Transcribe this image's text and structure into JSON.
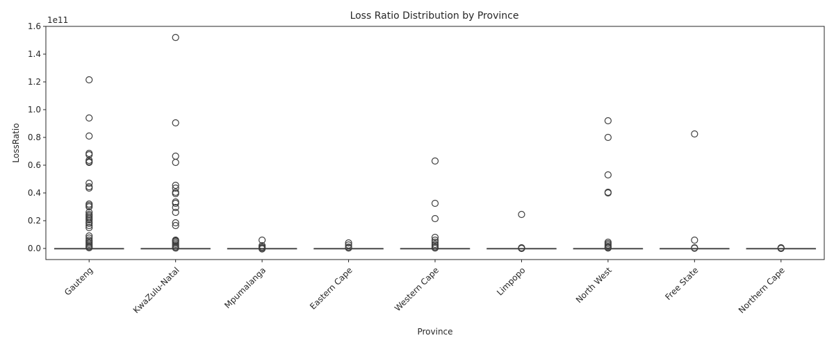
{
  "chart_data": {
    "type": "box",
    "title": "Loss Ratio Distribution by Province",
    "xlabel": "Province",
    "ylabel": "LossRatio",
    "y_offset_label": "1e11",
    "ylim": [
      -0.08,
      1.6
    ],
    "yticks": [
      0.0,
      0.2,
      0.4,
      0.6,
      0.8,
      1.0,
      1.2,
      1.4,
      1.6
    ],
    "ytick_labels": [
      "0.0",
      "0.2",
      "0.4",
      "0.6",
      "0.8",
      "1.0",
      "1.2",
      "1.4",
      "1.6"
    ],
    "grid": false,
    "x_tick_rotation_deg": 45,
    "colors": {
      "stroke": "#3f3f3f",
      "box_fill": "#1f77b4",
      "text": "#262626"
    },
    "categories": [
      "Gauteng",
      "KwaZulu-Natal",
      "Mpumalanga",
      "Eastern Cape",
      "Western Cape",
      "Limpopo",
      "North West",
      "Free State",
      "Northern Cape"
    ],
    "boxes": [
      {
        "category": "Gauteng",
        "q1": 0,
        "median": 0,
        "q3": 0,
        "whisker_low": 0,
        "whisker_high": 0,
        "outliers": [
          1.215,
          0.94,
          0.81,
          0.685,
          0.675,
          0.635,
          0.625,
          0.62,
          0.47,
          0.445,
          0.435,
          0.32,
          0.31,
          0.3,
          0.26,
          0.245,
          0.235,
          0.225,
          0.215,
          0.205,
          0.19,
          0.18,
          0.165,
          0.15,
          0.09,
          0.075,
          0.06,
          0.05,
          0.04,
          0.03,
          0.02,
          0.012,
          0.005
        ]
      },
      {
        "category": "KwaZulu-Natal",
        "q1": 0,
        "median": 0,
        "q3": 0,
        "whisker_low": 0,
        "whisker_high": 0,
        "outliers": [
          1.52,
          0.905,
          0.665,
          0.62,
          0.455,
          0.435,
          0.405,
          0.395,
          0.335,
          0.325,
          0.295,
          0.26,
          0.185,
          0.165,
          0.06,
          0.055,
          0.05,
          0.04,
          0.03,
          0.02,
          0.01,
          0.003
        ]
      },
      {
        "category": "Mpumalanga",
        "q1": 0,
        "median": 0,
        "q3": 0,
        "whisker_low": 0,
        "whisker_high": 0,
        "outliers": [
          0.06,
          0.02,
          0.01,
          0.003,
          -0.003
        ]
      },
      {
        "category": "Eastern Cape",
        "q1": 0,
        "median": 0,
        "q3": 0,
        "whisker_low": 0,
        "whisker_high": 0,
        "outliers": [
          0.04,
          0.025,
          0.01,
          0.003
        ]
      },
      {
        "category": "Western Cape",
        "q1": 0,
        "median": 0,
        "q3": 0,
        "whisker_low": 0,
        "whisker_high": 0,
        "outliers": [
          0.63,
          0.325,
          0.215,
          0.08,
          0.06,
          0.045,
          0.03,
          0.02,
          0.01,
          0.003
        ]
      },
      {
        "category": "Limpopo",
        "q1": 0,
        "median": 0,
        "q3": 0,
        "whisker_low": 0,
        "whisker_high": 0,
        "outliers": [
          0.245,
          0.005,
          0.002,
          0.0
        ]
      },
      {
        "category": "North West",
        "q1": 0,
        "median": 0,
        "q3": 0,
        "whisker_low": 0,
        "whisker_high": 0,
        "outliers": [
          0.92,
          0.8,
          0.53,
          0.405,
          0.4,
          0.045,
          0.035,
          0.025,
          0.015,
          0.008,
          0.003
        ]
      },
      {
        "category": "Free State",
        "q1": 0,
        "median": 0,
        "q3": 0,
        "whisker_low": 0,
        "whisker_high": 0,
        "outliers": [
          0.825,
          0.06,
          0.005,
          0.002
        ]
      },
      {
        "category": "Northern Cape",
        "q1": 0,
        "median": 0,
        "q3": 0,
        "whisker_low": 0,
        "whisker_high": 0,
        "outliers": [
          0.005,
          0.002,
          0.0
        ]
      }
    ]
  }
}
